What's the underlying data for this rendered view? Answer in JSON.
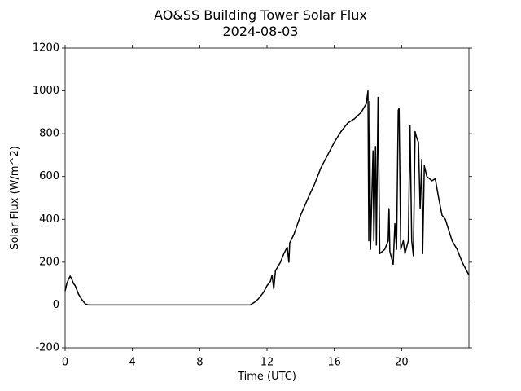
{
  "chart_data": {
    "type": "line",
    "title": "AO&SS Building Tower Solar Flux",
    "subtitle": "2024-08-03",
    "x_label": "Time (UTC)",
    "y_label": "Solar Flux (W/m^2)",
    "color": "#000000",
    "xlim": [
      0,
      24
    ],
    "xticks": [
      0,
      4,
      8,
      12,
      16,
      20
    ],
    "ylim": [
      -200,
      1200
    ],
    "yticks": [
      -200,
      0,
      200,
      400,
      600,
      800,
      1000,
      1200
    ],
    "x": [
      0,
      0.1,
      0.2,
      0.3,
      0.4,
      0.5,
      0.6,
      0.8,
      1.0,
      1.2,
      1.4,
      11.0,
      11.3,
      11.5,
      11.8,
      12.0,
      12.2,
      12.3,
      12.4,
      12.5,
      12.8,
      13.0,
      13.2,
      13.3,
      13.35,
      13.6,
      14.0,
      14.5,
      14.8,
      15.2,
      15.6,
      16.0,
      16.4,
      16.8,
      17.2,
      17.6,
      17.9,
      18.0,
      18.05,
      18.1,
      18.15,
      18.3,
      18.35,
      18.45,
      18.5,
      18.6,
      18.7,
      19.0,
      19.2,
      19.25,
      19.3,
      19.5,
      19.6,
      19.7,
      19.8,
      19.85,
      19.95,
      20.1,
      20.2,
      20.4,
      20.5,
      20.6,
      20.7,
      20.8,
      20.9,
      21.0,
      21.1,
      21.2,
      21.25,
      21.35,
      21.5,
      21.8,
      22.0,
      22.2,
      22.4,
      22.6,
      22.8,
      23.0,
      23.3,
      23.6,
      24.0
    ],
    "values": [
      65,
      100,
      120,
      135,
      120,
      100,
      90,
      50,
      25,
      5,
      0,
      0,
      15,
      30,
      60,
      90,
      110,
      140,
      75,
      160,
      200,
      240,
      270,
      200,
      290,
      330,
      420,
      510,
      560,
      640,
      700,
      760,
      810,
      850,
      870,
      900,
      940,
      1000,
      300,
      950,
      260,
      720,
      300,
      740,
      280,
      970,
      240,
      260,
      300,
      450,
      250,
      190,
      380,
      260,
      910,
      920,
      260,
      300,
      240,
      300,
      840,
      300,
      230,
      810,
      780,
      760,
      450,
      680,
      240,
      650,
      600,
      580,
      590,
      500,
      420,
      400,
      350,
      300,
      260,
      200,
      140
    ]
  }
}
